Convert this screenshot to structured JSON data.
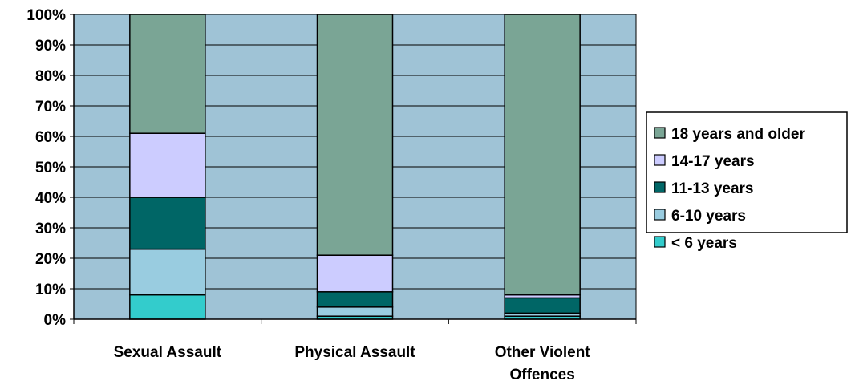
{
  "chart_data": {
    "type": "bar",
    "stacked": true,
    "percent": true,
    "categories": [
      [
        "Sexual Assault"
      ],
      [
        "Physical Assault"
      ],
      [
        "Other Violent",
        "Offences"
      ]
    ],
    "series": [
      {
        "name": "< 6 years",
        "color": "#33CCCC",
        "values": [
          8,
          1,
          1
        ]
      },
      {
        "name": "6-10 years",
        "color": "#99CCE0",
        "values": [
          15,
          3,
          1
        ]
      },
      {
        "name": "11-13 years",
        "color": "#006666",
        "values": [
          17,
          5,
          5
        ]
      },
      {
        "name": "14-17 years",
        "color": "#CCCCFF",
        "values": [
          21,
          12,
          1
        ]
      },
      {
        "name": "18 years and older",
        "color": "#7AA595",
        "values": [
          39,
          79,
          92
        ]
      }
    ],
    "ylim": [
      0,
      100
    ],
    "yticks": [
      "0%",
      "10%",
      "20%",
      "30%",
      "40%",
      "50%",
      "60%",
      "70%",
      "80%",
      "90%",
      "100%"
    ],
    "plot_background": "#9FC3D6",
    "grid": true,
    "legend_placement": "right",
    "title": "",
    "xlabel": "",
    "ylabel": ""
  }
}
